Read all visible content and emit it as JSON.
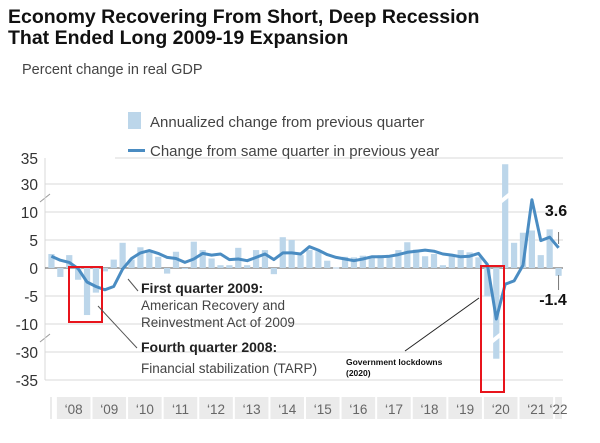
{
  "chart_data": {
    "type": "bar+line",
    "title_line1": "Economy Recovering From Short, Deep Recession",
    "title_line2": "That Ended Long 2009-19 Expansion",
    "subtitle": "Percent change in real GDP",
    "legend": [
      {
        "label": "Annualized change from previous quarter",
        "kind": "bar"
      },
      {
        "label": "Change from same quarter in previous year",
        "kind": "line"
      }
    ],
    "legend_placement": "top",
    "y_ticks": [
      "35",
      "30",
      "10",
      "5",
      "0",
      "-5",
      "-10",
      "-30",
      "-35"
    ],
    "y_axis_breaks": [
      [
        10,
        30
      ],
      [
        -30,
        -10
      ]
    ],
    "x_tick_labels": [
      "‘08",
      "‘09",
      "‘10",
      "‘11",
      "‘12",
      "‘13",
      "‘14",
      "‘15",
      "‘16",
      "‘17",
      "‘18",
      "‘19",
      "‘20",
      "‘21",
      "‘22"
    ],
    "quarters": [
      "2007Q4",
      "2008Q1",
      "2008Q2",
      "2008Q3",
      "2008Q4",
      "2009Q1",
      "2009Q2",
      "2009Q3",
      "2009Q4",
      "2010Q1",
      "2010Q2",
      "2010Q3",
      "2010Q4",
      "2011Q1",
      "2011Q2",
      "2011Q3",
      "2011Q4",
      "2012Q1",
      "2012Q2",
      "2012Q3",
      "2012Q4",
      "2013Q1",
      "2013Q2",
      "2013Q3",
      "2013Q4",
      "2014Q1",
      "2014Q2",
      "2014Q3",
      "2014Q4",
      "2015Q1",
      "2015Q2",
      "2015Q3",
      "2015Q4",
      "2016Q1",
      "2016Q2",
      "2016Q3",
      "2016Q4",
      "2017Q1",
      "2017Q2",
      "2017Q3",
      "2017Q4",
      "2018Q1",
      "2018Q2",
      "2018Q3",
      "2018Q4",
      "2019Q1",
      "2019Q2",
      "2019Q3",
      "2019Q4",
      "2020Q1",
      "2020Q2",
      "2020Q3",
      "2020Q4",
      "2021Q1",
      "2021Q2",
      "2021Q3",
      "2021Q4",
      "2022Q1"
    ],
    "series": [
      {
        "name": "Annualized change from previous quarter",
        "type": "bar",
        "values": [
          2.5,
          -1.6,
          2.3,
          -2.1,
          -8.4,
          -4.4,
          -0.6,
          1.5,
          4.5,
          1.5,
          3.7,
          3.0,
          2.0,
          -1.0,
          2.9,
          -0.1,
          4.7,
          3.2,
          1.7,
          0.5,
          0.5,
          3.6,
          0.5,
          3.2,
          3.2,
          -1.1,
          5.5,
          5.0,
          2.3,
          3.2,
          3.0,
          1.3,
          0.1,
          2.0,
          1.9,
          2.2,
          2.0,
          2.3,
          2.2,
          3.2,
          4.6,
          3.3,
          2.1,
          2.5,
          0.5,
          2.4,
          3.2,
          2.8,
          1.9,
          -5.1,
          -31.2,
          33.8,
          4.5,
          6.3,
          6.7,
          2.3,
          6.9,
          -1.4
        ]
      },
      {
        "name": "Change from same quarter in previous year",
        "type": "line",
        "values": [
          2.1,
          1.4,
          1.0,
          -0.1,
          -2.5,
          -3.3,
          -3.9,
          -3.3,
          -0.2,
          1.7,
          2.7,
          3.1,
          2.6,
          1.9,
          1.7,
          1.0,
          1.6,
          2.6,
          2.3,
          2.5,
          1.5,
          1.6,
          1.3,
          1.9,
          2.5,
          1.5,
          2.7,
          2.7,
          2.5,
          3.8,
          3.2,
          2.4,
          1.9,
          1.6,
          1.3,
          1.6,
          2.0,
          2.0,
          2.1,
          2.4,
          2.8,
          3.0,
          3.2,
          3.0,
          2.5,
          2.3,
          2.0,
          2.1,
          2.6,
          0.6,
          -9.1,
          -2.9,
          -2.3,
          0.5,
          12.2,
          4.9,
          5.5,
          3.6
        ]
      }
    ],
    "data_labels": {
      "last_yoy": "3.6",
      "last_quarter": "-1.4"
    },
    "annotations": [
      {
        "title": "First quarter 2009:",
        "line1": "American Recovery and",
        "line2": "Reinvestment Act of 2009"
      },
      {
        "title": "Fourth quarter 2008:",
        "line1": "Financial stabilization (TARP)"
      },
      {
        "title": "Government lockdowns",
        "line1": "(2020)"
      }
    ],
    "colors": {
      "bar": "#bcd6ea",
      "line": "#4a8cc2",
      "highlight_box": "#e8141c",
      "grid": "#d9d9d9",
      "x_strip": "#ebebeb"
    }
  }
}
